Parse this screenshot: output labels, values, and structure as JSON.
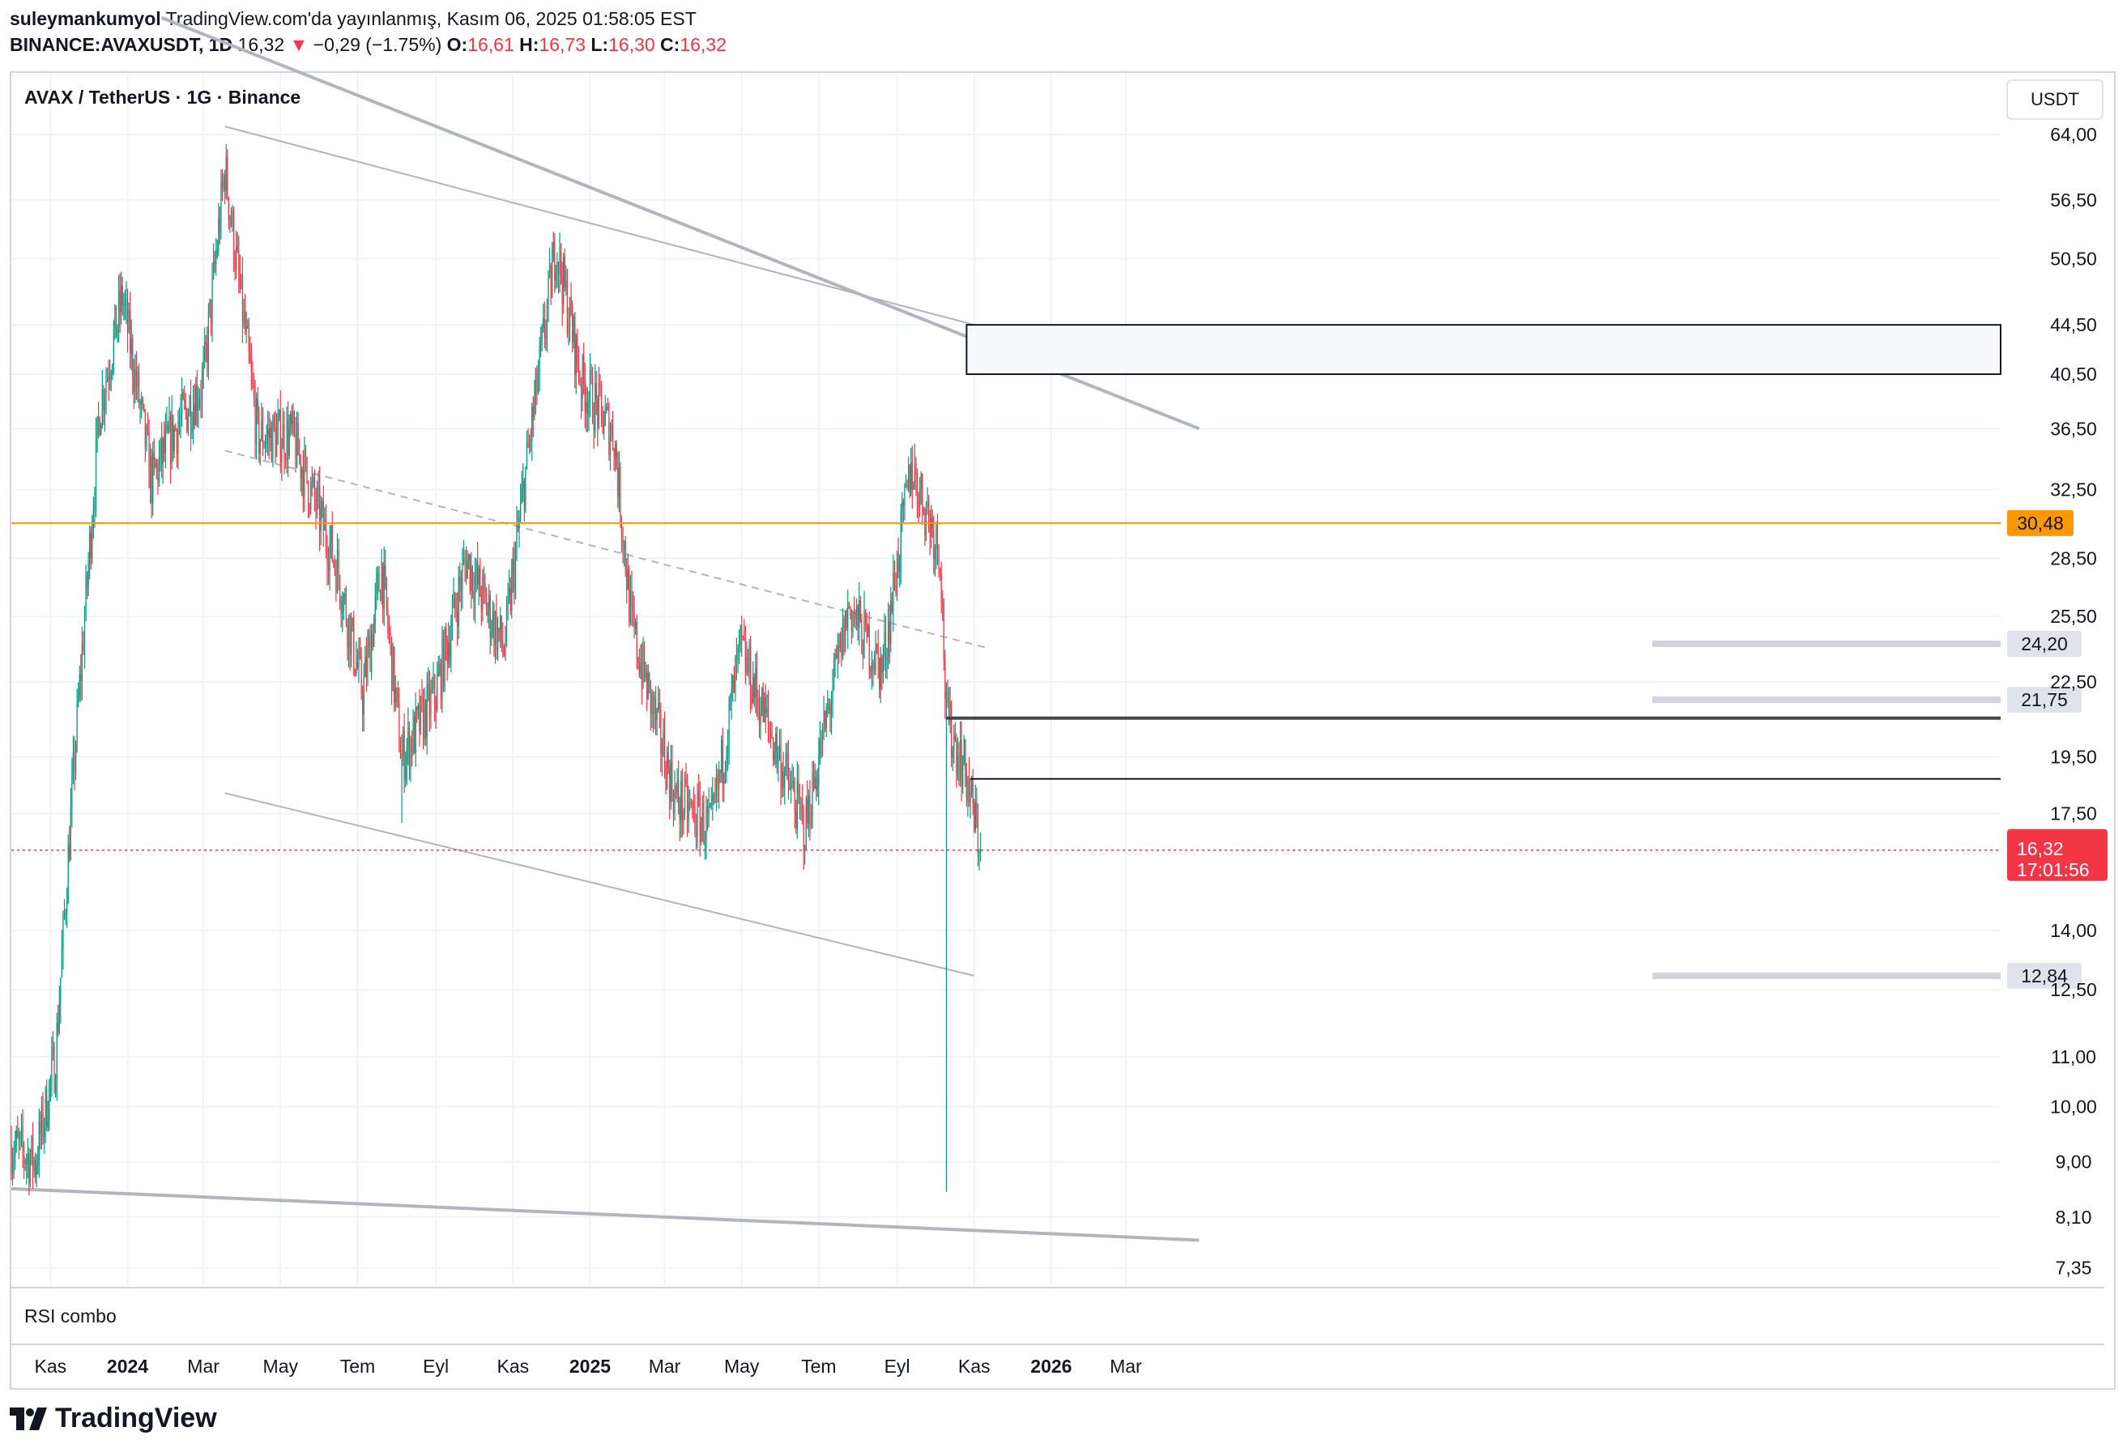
{
  "header": {
    "author": "suleymankumyol",
    "published": "TradingView.com'da yayınlanmış, Kasım 06, 2025 01:58:05 EST",
    "symbol": "BINANCE:AVAXUSDT, 1D",
    "last": "16,32",
    "change_arrow": "▼",
    "change": "−0,29 (−1.75%)",
    "o_label": "O:",
    "o": "16,61",
    "h_label": "H:",
    "h": "16,73",
    "l_label": "L:",
    "l": "16,30",
    "c_label": "C:",
    "c": "16,32"
  },
  "pane": {
    "title": "AVAX / TetherUS · 1G · Binance",
    "currency": "USDT",
    "rsi_label": "RSI combo"
  },
  "footer": {
    "brand": "TradingView"
  },
  "colors": {
    "up": "#089981",
    "down": "#f23645",
    "orange": "#ff9800",
    "trend": "#b2b5be",
    "grid": "#f0f3fa"
  },
  "chart_data": {
    "type": "candlestick",
    "title": "AVAX / TetherUS · 1G · Binance",
    "ylabel": "USDT",
    "yscale": "log",
    "ylim": [
      7.1,
      72
    ],
    "x_ticks": [
      "Kas",
      "2024",
      "Mar",
      "May",
      "Tem",
      "Eyl",
      "Kas",
      "2025",
      "Mar",
      "May",
      "Tem",
      "Eyl",
      "Kas",
      "2026",
      "Mar"
    ],
    "bold_ticks": [
      "2024",
      "2025",
      "2026"
    ],
    "y_ticks": [
      "64,00",
      "56,50",
      "50,50",
      "44,50",
      "40,50",
      "36,50",
      "32,50",
      "28,50",
      "25,50",
      "22,50",
      "19,50",
      "17,50",
      "14,00",
      "12,50",
      "11,00",
      "10,00",
      "9,00",
      "8,10",
      "7,35"
    ],
    "key_levels": [
      {
        "label": "30,48",
        "value": 30.48,
        "style": "orange"
      },
      {
        "label": "24,20",
        "value": 24.2,
        "style": "grey"
      },
      {
        "label": "21,75",
        "value": 21.75,
        "style": "grey"
      },
      {
        "label": "12,84",
        "value": 12.84,
        "style": "grey"
      }
    ],
    "price_label": "16,32",
    "countdown": "17:01:56",
    "close_path": [
      [
        "2023-10-01",
        9.3
      ],
      [
        "2023-10-20",
        9.0
      ],
      [
        "2023-11-05",
        11.0
      ],
      [
        "2023-11-20",
        19.5
      ],
      [
        "2023-12-10",
        38.0
      ],
      [
        "2023-12-28",
        47.0
      ],
      [
        "2024-01-20",
        33.0
      ],
      [
        "2024-02-05",
        36.0
      ],
      [
        "2024-03-01",
        40.0
      ],
      [
        "2024-03-18",
        60.0
      ],
      [
        "2024-04-13",
        36.0
      ],
      [
        "2024-05-10",
        36.0
      ],
      [
        "2024-06-15",
        28.0
      ],
      [
        "2024-07-05",
        22.0
      ],
      [
        "2024-07-20",
        28.0
      ],
      [
        "2024-08-05",
        19.5
      ],
      [
        "2024-09-01",
        22.0
      ],
      [
        "2024-09-25",
        28.5
      ],
      [
        "2024-10-25",
        24.0
      ],
      [
        "2024-11-10",
        33.0
      ],
      [
        "2024-12-05",
        52.0
      ],
      [
        "2024-12-25",
        40.0
      ],
      [
        "2025-01-20",
        36.0
      ],
      [
        "2025-02-03",
        25.0
      ],
      [
        "2025-03-10",
        18.0
      ],
      [
        "2025-04-07",
        17.0
      ],
      [
        "2025-04-30",
        24.0
      ],
      [
        "2025-06-20",
        17.0
      ],
      [
        "2025-07-25",
        26.0
      ],
      [
        "2025-08-20",
        23.0
      ],
      [
        "2025-09-12",
        34.0
      ],
      [
        "2025-10-05",
        29.0
      ],
      [
        "2025-10-10",
        21.0
      ],
      [
        "2025-10-25",
        19.0
      ],
      [
        "2025-11-06",
        16.32
      ]
    ]
  }
}
